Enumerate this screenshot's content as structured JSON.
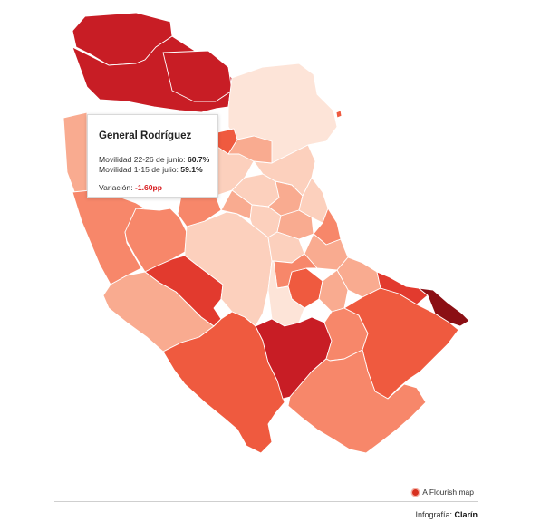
{
  "colors": {
    "darkest": "#8b0f14",
    "dark": "#c81d25",
    "strong": "#e23a2e",
    "medium": "#ef5a3f",
    "light_medium": "#f7876a",
    "light": "#f9ab90",
    "lighter": "#fcd0bd",
    "lightest": "#fde4d8",
    "highlight_outline": "#000000",
    "negative_text": "#d7191c"
  },
  "tooltip": {
    "title": "General Rodríguez",
    "line1_label": "Movilidad 22-26 de junio: ",
    "line1_value": "60.7%",
    "line2_label": "Movilidad 1-15 de julio: ",
    "line2_value": "59.1%",
    "variation_label": "Variación: ",
    "variation_value": "-1.60pp"
  },
  "footer": {
    "flourish_label": "A Flourish map",
    "credit_label": "Infografía: ",
    "credit_source": "Clarín"
  }
}
